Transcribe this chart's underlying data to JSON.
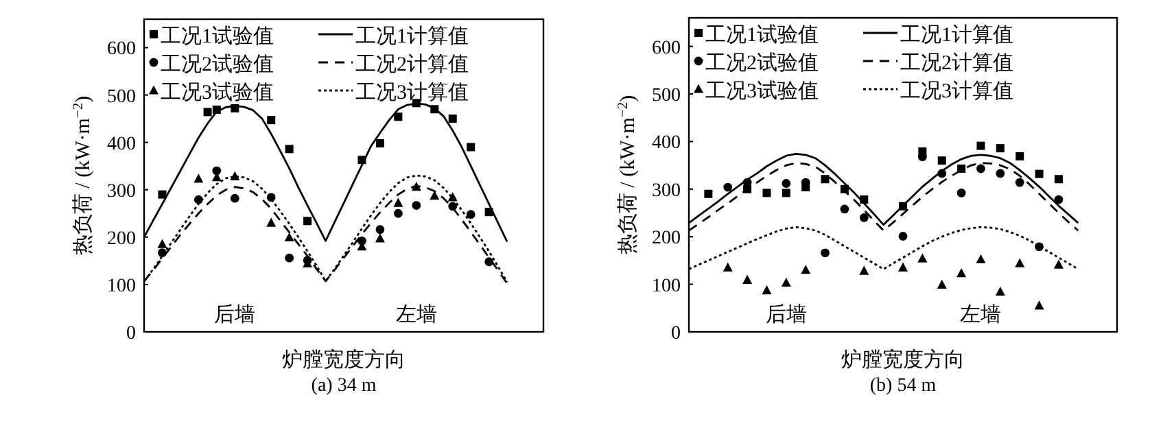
{
  "chart_data": [
    {
      "type": "line",
      "title": "(a) 34 m",
      "xlabel": "炉膛宽度方向",
      "ylabel": "热负荷 / (kW·m$^{−2}$)",
      "categories": [
        null,
        null,
        null,
        null,
        null,
        null,
        null,
        null,
        null,
        null,
        null,
        null,
        null,
        null,
        null,
        null,
        null,
        null,
        null,
        null,
        null,
        null,
        null,
        null,
        null,
        null,
        null,
        null,
        null,
        null,
        null,
        null,
        null,
        null,
        null,
        null,
        null,
        null,
        null,
        null,
        null,
        null,
        null,
        null,
        null
      ],
      "ylim": [
        0,
        660
      ],
      "yticks": [
        0,
        100,
        200,
        300,
        400,
        500,
        600
      ],
      "tick_labels": "y",
      "grid": false,
      "legend": "top",
      "annotations": [
        "后墙",
        "左墙"
      ],
      "series": [
        {
          "name": "工况1试验值",
          "type": "scatter",
          "marker": "square",
          "color": "#000000",
          "values": [
            null,
            null,
            290,
            null,
            null,
            null,
            null,
            464,
            469,
            null,
            472,
            null,
            null,
            null,
            447,
            null,
            386,
            null,
            234,
            null,
            null,
            null,
            null,
            null,
            363,
            null,
            398,
            null,
            454,
            null,
            483,
            null,
            470,
            null,
            450,
            null,
            390,
            null,
            253,
            null,
            null,
            null,
            null,
            null,
            null
          ]
        },
        {
          "name": "工况2试验值",
          "type": "scatter",
          "marker": "circle",
          "color": "#000000",
          "values": [
            null,
            null,
            167,
            null,
            null,
            null,
            279,
            null,
            340,
            null,
            282,
            null,
            null,
            null,
            284,
            null,
            156,
            null,
            151,
            null,
            null,
            null,
            null,
            null,
            192,
            null,
            216,
            null,
            250,
            null,
            267,
            null,
            null,
            null,
            265,
            null,
            248,
            null,
            148,
            null,
            null,
            null,
            null,
            null,
            null
          ]
        },
        {
          "name": "工况3试验值",
          "type": "scatter",
          "marker": "triangle",
          "color": "#000000",
          "values": [
            null,
            null,
            185,
            null,
            null,
            null,
            323,
            null,
            326,
            null,
            328,
            null,
            null,
            null,
            230,
            null,
            199,
            null,
            144,
            null,
            null,
            null,
            null,
            null,
            180,
            null,
            197,
            null,
            272,
            null,
            306,
            null,
            287,
            null,
            284,
            null,
            null,
            null,
            null,
            null,
            null,
            null,
            null,
            null,
            null
          ]
        },
        {
          "name": "工况1计算值",
          "type": "line",
          "line_style": "solid",
          "color": "#000000",
          "values": [
            200,
            235,
            270,
            305,
            340,
            375,
            410,
            440,
            465,
            474,
            477,
            475,
            468,
            450,
            418,
            382,
            345,
            305,
            267,
            230,
            192,
            232,
            272,
            312,
            352,
            392,
            420,
            447,
            470,
            479,
            482,
            480,
            472,
            455,
            425,
            390,
            350,
            310,
            270,
            230,
            190,
            null,
            null,
            null,
            null
          ]
        },
        {
          "name": "工况2计算值",
          "type": "line",
          "line_style": "dashed",
          "color": "#000000",
          "values": [
            107,
            130,
            155,
            180,
            205,
            228,
            250,
            270,
            288,
            300,
            306,
            303,
            295,
            280,
            260,
            235,
            210,
            185,
            160,
            133,
            107,
            131,
            156,
            181,
            206,
            230,
            252,
            272,
            290,
            302,
            308,
            305,
            297,
            282,
            262,
            237,
            211,
            184,
            157,
            130,
            102,
            null,
            null,
            null,
            null
          ]
        },
        {
          "name": "工况3计算值",
          "type": "line",
          "line_style": "dotted",
          "color": "#000000",
          "values": [
            107,
            132,
            160,
            188,
            216,
            244,
            270,
            293,
            312,
            324,
            328,
            326,
            318,
            302,
            280,
            255,
            228,
            200,
            170,
            140,
            107,
            133,
            161,
            189,
            218,
            246,
            272,
            295,
            314,
            326,
            330,
            328,
            320,
            304,
            282,
            257,
            229,
            200,
            170,
            138,
            105,
            null,
            null,
            null,
            null
          ]
        }
      ]
    },
    {
      "type": "line",
      "title": "(b) 54 m",
      "xlabel": "炉膛宽度方向",
      "ylabel": "热负荷 / (kW·m$^{−2}$)",
      "categories": [
        null,
        null,
        null,
        null,
        null,
        null,
        null,
        null,
        null,
        null,
        null,
        null,
        null,
        null,
        null,
        null,
        null,
        null,
        null,
        null,
        null,
        null,
        null,
        null,
        null,
        null,
        null,
        null,
        null,
        null,
        null,
        null,
        null,
        null,
        null,
        null,
        null,
        null,
        null,
        null,
        null,
        null,
        null,
        null,
        null
      ],
      "ylim": [
        0,
        660
      ],
      "yticks": [
        0,
        100,
        200,
        300,
        400,
        500,
        600
      ],
      "tick_labels": "y",
      "grid": false,
      "legend": "top",
      "annotations": [
        "后墙",
        "左墙"
      ],
      "series": [
        {
          "name": "工况1试验值",
          "type": "scatter",
          "marker": "square",
          "color": "#000000",
          "values": [
            null,
            null,
            290,
            null,
            null,
            null,
            300,
            null,
            292,
            null,
            292,
            null,
            304,
            null,
            321,
            null,
            300,
            null,
            278,
            null,
            null,
            null,
            264,
            null,
            379,
            null,
            360,
            null,
            343,
            null,
            391,
            null,
            386,
            null,
            369,
            null,
            332,
            null,
            321,
            null,
            null,
            null,
            null,
            null,
            null
          ]
        },
        {
          "name": "工况2试验值",
          "type": "scatter",
          "marker": "circle",
          "color": "#000000",
          "values": [
            null,
            null,
            null,
            null,
            304,
            null,
            314,
            null,
            null,
            null,
            312,
            null,
            314,
            null,
            166,
            null,
            258,
            null,
            240,
            null,
            null,
            null,
            201,
            null,
            368,
            null,
            333,
            null,
            292,
            null,
            343,
            null,
            333,
            null,
            314,
            null,
            179,
            null,
            278,
            null,
            null,
            null,
            null,
            null,
            null
          ]
        },
        {
          "name": "工况3试验值",
          "type": "scatter",
          "marker": "triangle",
          "color": "#000000",
          "values": [
            null,
            null,
            null,
            null,
            135,
            null,
            109,
            null,
            87,
            null,
            103,
            null,
            130,
            null,
            null,
            null,
            null,
            null,
            128,
            null,
            null,
            null,
            135,
            null,
            154,
            null,
            99,
            null,
            123,
            null,
            152,
            null,
            84,
            null,
            144,
            null,
            55,
            null,
            141,
            null,
            null,
            null,
            null,
            null,
            null
          ]
        },
        {
          "name": "工况1计算值",
          "type": "line",
          "line_style": "solid",
          "color": "#000000",
          "values": [
            229,
            244,
            259,
            274,
            290,
            305,
            320,
            333,
            348,
            360,
            370,
            374,
            372,
            365,
            350,
            332,
            312,
            292,
            270,
            248,
            225,
            245,
            265,
            285,
            305,
            322,
            338,
            352,
            363,
            370,
            372,
            370,
            365,
            355,
            340,
            323,
            305,
            285,
            265,
            247,
            229,
            null,
            null,
            null,
            null
          ]
        },
        {
          "name": "工况2计算值",
          "type": "line",
          "line_style": "dashed",
          "color": "#000000",
          "values": [
            213,
            227,
            241,
            256,
            270,
            285,
            300,
            314,
            328,
            340,
            350,
            355,
            353,
            347,
            333,
            315,
            296,
            277,
            256,
            234,
            213,
            230,
            248,
            266,
            284,
            300,
            315,
            328,
            340,
            350,
            355,
            354,
            350,
            342,
            328,
            310,
            290,
            270,
            250,
            231,
            213,
            null,
            null,
            null,
            null
          ]
        },
        {
          "name": "工况3计算值",
          "type": "line",
          "line_style": "dotted",
          "color": "#000000",
          "values": [
            132,
            141,
            150,
            159,
            168,
            177,
            186,
            195,
            203,
            211,
            217,
            220,
            218,
            213,
            204,
            192,
            180,
            168,
            156,
            144,
            132,
            144,
            156,
            168,
            180,
            191,
            200,
            208,
            214,
            218,
            220,
            219,
            216,
            210,
            202,
            192,
            180,
            168,
            156,
            144,
            132,
            null,
            null,
            null,
            null
          ]
        }
      ]
    }
  ]
}
